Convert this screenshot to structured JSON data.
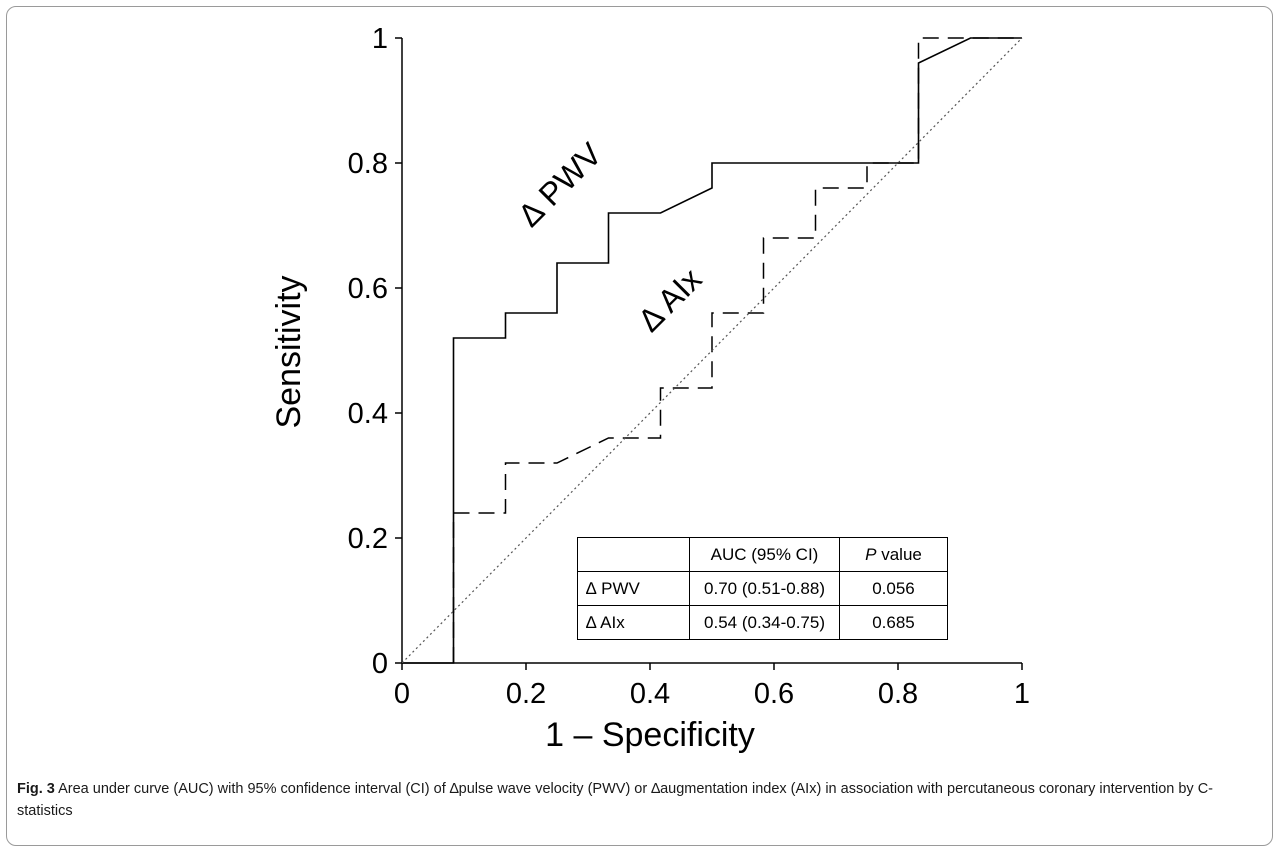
{
  "chart_data": {
    "type": "line",
    "title": "",
    "xlabel": "1 – Specificity",
    "ylabel": "Sensitivity",
    "xlim": [
      0,
      1
    ],
    "ylim": [
      0,
      1
    ],
    "x_ticks": [
      "0",
      "0.2",
      "0.4",
      "0.6",
      "0.8",
      "1"
    ],
    "y_ticks": [
      "0",
      "0.2",
      "0.4",
      "0.6",
      "0.8",
      "1"
    ],
    "grid": false,
    "series": [
      {
        "name": "∆ PWV",
        "style": "solid",
        "points": [
          [
            0,
            0
          ],
          [
            0.083,
            0
          ],
          [
            0.083,
            0.52
          ],
          [
            0.167,
            0.52
          ],
          [
            0.167,
            0.56
          ],
          [
            0.25,
            0.56
          ],
          [
            0.25,
            0.64
          ],
          [
            0.333,
            0.64
          ],
          [
            0.333,
            0.72
          ],
          [
            0.417,
            0.72
          ],
          [
            0.5,
            0.76
          ],
          [
            0.5,
            0.8
          ],
          [
            0.833,
            0.8
          ],
          [
            0.833,
            0.96
          ],
          [
            0.917,
            1.0
          ],
          [
            1.0,
            1.0
          ]
        ]
      },
      {
        "name": "∆ AIx",
        "style": "dashed",
        "points": [
          [
            0.083,
            0
          ],
          [
            0.083,
            0.24
          ],
          [
            0.167,
            0.24
          ],
          [
            0.167,
            0.32
          ],
          [
            0.25,
            0.32
          ],
          [
            0.333,
            0.36
          ],
          [
            0.417,
            0.36
          ],
          [
            0.417,
            0.44
          ],
          [
            0.5,
            0.44
          ],
          [
            0.5,
            0.56
          ],
          [
            0.583,
            0.56
          ],
          [
            0.583,
            0.68
          ],
          [
            0.667,
            0.68
          ],
          [
            0.667,
            0.76
          ],
          [
            0.75,
            0.76
          ],
          [
            0.75,
            0.8
          ],
          [
            0.833,
            0.8
          ],
          [
            0.833,
            1.0
          ],
          [
            1.0,
            1.0
          ]
        ]
      },
      {
        "name": "",
        "style": "dotted-reference",
        "points": [
          [
            0,
            0
          ],
          [
            1,
            1
          ]
        ]
      }
    ],
    "annotations": [
      "∆ PWV",
      "∆ AIx"
    ],
    "table": {
      "headers": [
        "",
        "AUC (95% CI)",
        "P value"
      ],
      "rows": [
        [
          "∆ PWV",
          "0.70 (0.51-0.88)",
          "0.056"
        ],
        [
          "∆ AIx",
          "0.54 (0.34-0.75)",
          "0.685"
        ]
      ]
    }
  },
  "caption": {
    "label": "Fig. 3",
    "text": " Area under curve (AUC) with 95% confidence interval (CI) of ∆pulse wave velocity (PWV) or ∆augmentation index (AIx) in association with percutaneous coronary intervention by C-statistics"
  },
  "colors": {
    "line": "#000000",
    "reference": "#555555",
    "frame": "#9a9a9a"
  }
}
